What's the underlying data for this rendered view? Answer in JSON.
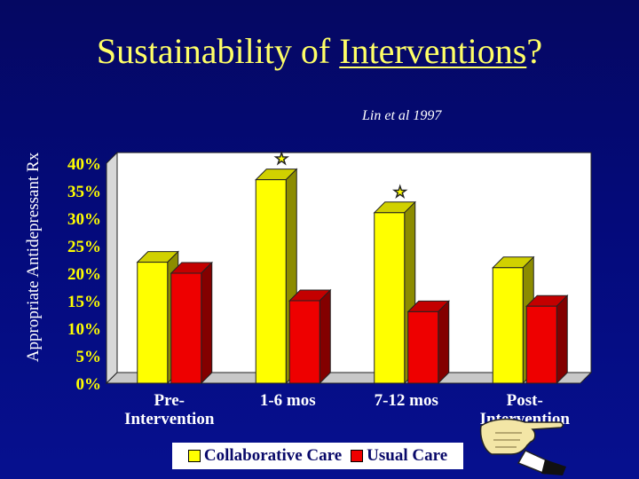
{
  "slide": {
    "title_plain": "Sustainability of ",
    "title_underlined": "Interventions",
    "title_end": "?",
    "citation": "Lin et al 1997"
  },
  "colors": {
    "collaborative": "#ffff00",
    "usual": "#ee0000",
    "plot_bg": "#ffffff",
    "tick_text": "#ffff00",
    "category_text": "#ffffff"
  },
  "chart_data": {
    "type": "bar",
    "ylabel": "Appropriate Antidepressant Rx",
    "xlabel": "",
    "ylim": [
      0,
      40
    ],
    "y_ticks": [
      "0%",
      "5%",
      "10%",
      "15%",
      "20%",
      "25%",
      "30%",
      "35%",
      "40%"
    ],
    "categories": [
      [
        "Pre-",
        "Intervention"
      ],
      [
        "1-6 mos"
      ],
      [
        "7-12 mos"
      ],
      [
        "Post-",
        "Intervention"
      ]
    ],
    "series": [
      {
        "name": "Collaborative Care",
        "values": [
          22,
          37,
          31,
          21
        ]
      },
      {
        "name": "Usual Care",
        "values": [
          20,
          15,
          13,
          14
        ]
      }
    ],
    "annotations": [
      {
        "category_index": 1,
        "series_index": 0,
        "symbol": "★"
      },
      {
        "category_index": 2,
        "series_index": 0,
        "symbol": "★"
      }
    ],
    "legend_position": "bottom",
    "grid": false
  },
  "icons": {
    "pointing_hand": "pointing-hand-icon"
  }
}
